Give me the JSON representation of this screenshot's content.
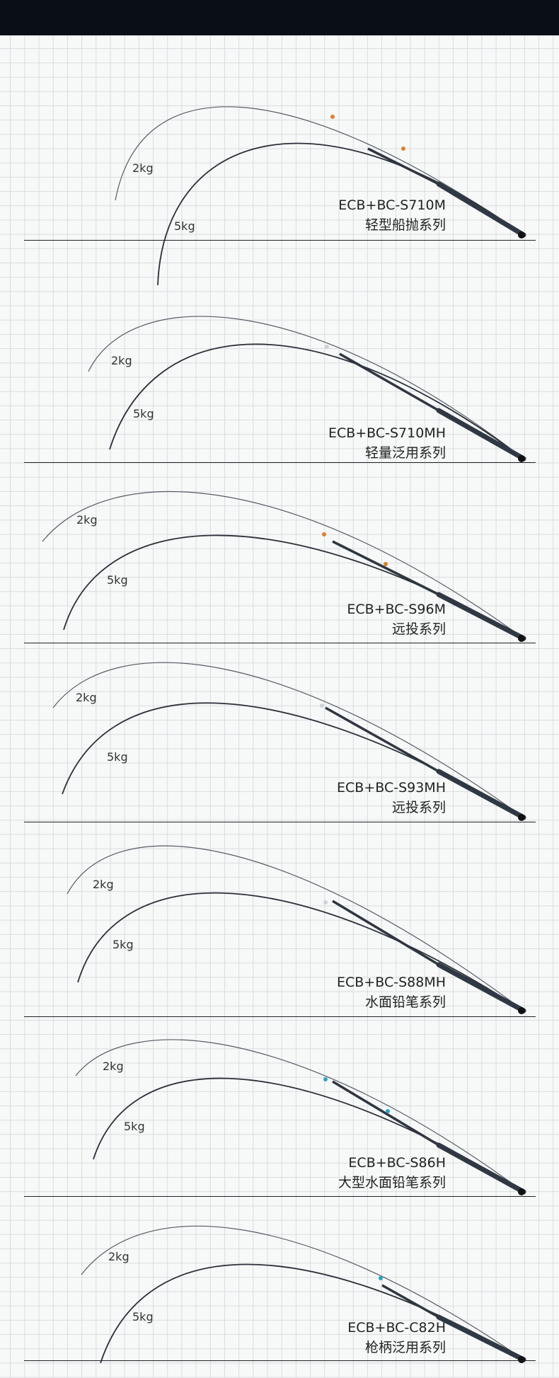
{
  "rods": [
    {
      "model": "ECB+BC-S710M",
      "series": "轻型船抛系列",
      "load_light": "2kg",
      "load_heavy": "5kg",
      "accent": "#d9822b"
    },
    {
      "model": "ECB+BC-S710MH",
      "series": "轻量泛用系列",
      "load_light": "2kg",
      "load_heavy": "5kg",
      "accent": "#cfd3d8"
    },
    {
      "model": "ECB+BC-S96M",
      "series": "远投系列",
      "load_light": "2kg",
      "load_heavy": "5kg",
      "accent": "#d9822b"
    },
    {
      "model": "ECB+BC-S93MH",
      "series": "远投系列",
      "load_light": "2kg",
      "load_heavy": "5kg",
      "accent": "#cfd3d8"
    },
    {
      "model": "ECB+BC-S88MH",
      "series": "水面铅笔系列",
      "load_light": "2kg",
      "load_heavy": "5kg",
      "accent": "#cfd3d8"
    },
    {
      "model": "ECB+BC-S86H",
      "series": "大型水面铅笔系列",
      "load_light": "2kg",
      "load_heavy": "5kg",
      "accent": "#2ba3c9"
    },
    {
      "model": "ECB+BC-C82H",
      "series": "枪柄泛用系列",
      "load_light": "2kg",
      "load_heavy": "5kg",
      "accent": "#2ba3c9"
    }
  ]
}
